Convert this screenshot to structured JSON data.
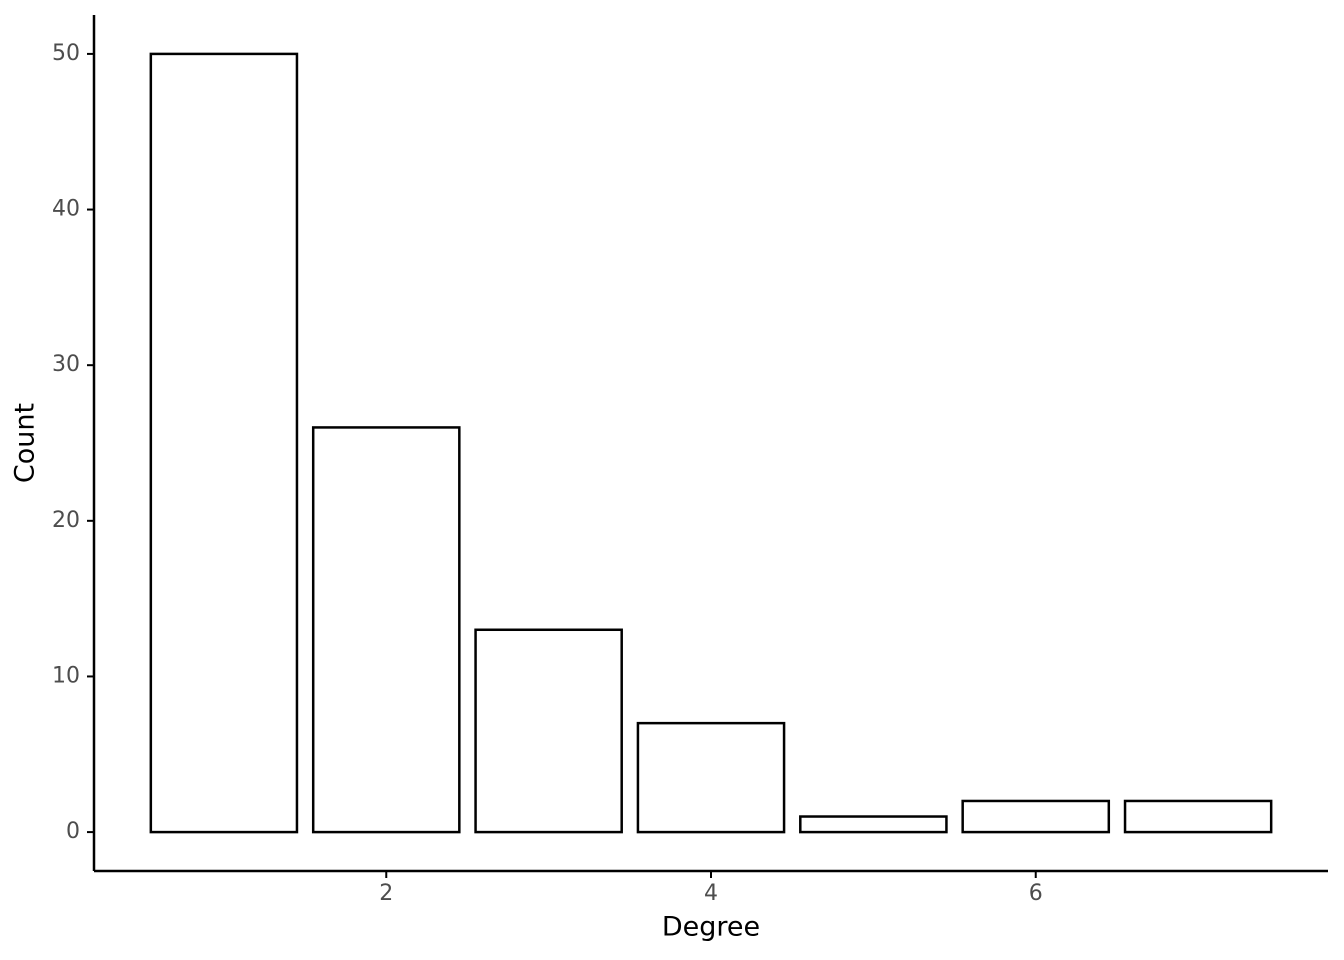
{
  "chart_data": {
    "type": "bar",
    "x_label": "Degree",
    "y_label": "Count",
    "x": [
      1,
      2,
      3,
      4,
      5,
      6,
      7
    ],
    "values": [
      50,
      26,
      13,
      7,
      1,
      2,
      2
    ],
    "fill": "#ffffff",
    "color": "#000000",
    "xlim": [
      0.2,
      7.8
    ],
    "xticks": [
      2,
      4,
      6
    ],
    "ylim": [
      -2.5,
      52.5
    ],
    "yticks": [
      0,
      10,
      20,
      30,
      40,
      50
    ],
    "grid": false
  }
}
